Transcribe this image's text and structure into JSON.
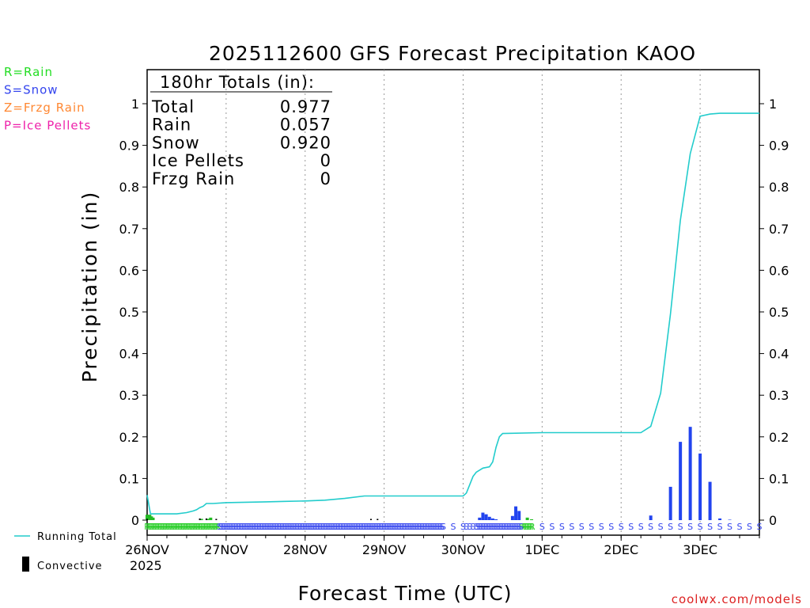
{
  "chart_data": {
    "type": "bar+line",
    "title": "2025112600 GFS Forecast Precipitation KAOO",
    "xlabel": "Forecast Time (UTC)",
    "ylabel": "Precipitation (in)",
    "ylim": [
      0,
      1.05
    ],
    "y_ticks": [
      "0",
      "0.1",
      "0.2",
      "0.3",
      "0.4",
      "0.5",
      "0.6",
      "0.7",
      "0.8",
      "0.9",
      "1"
    ],
    "y_tick_values": [
      0,
      0.1,
      0.2,
      0.3,
      0.4,
      0.5,
      0.6,
      0.7,
      0.8,
      0.9,
      1
    ],
    "xlim_hours": [
      0,
      186
    ],
    "x_ticks": [
      {
        "label": "26NOV",
        "hour": 0
      },
      {
        "label": "27NOV",
        "hour": 24
      },
      {
        "label": "28NOV",
        "hour": 48
      },
      {
        "label": "29NOV",
        "hour": 72
      },
      {
        "label": "30NOV",
        "hour": 96
      },
      {
        "label": "1DEC",
        "hour": 120
      },
      {
        "label": "2DEC",
        "hour": 144
      },
      {
        "label": "3DEC",
        "hour": 168
      }
    ],
    "year_label": "2025",
    "type_legend": [
      {
        "text": "R=Rain",
        "color": "#22dd22"
      },
      {
        "text": "S=Snow",
        "color": "#3344ee"
      },
      {
        "text": "Z=Frzg Rain",
        "color": "#ff8833"
      },
      {
        "text": "P=Ice Pellets",
        "color": "#ee22aa"
      }
    ],
    "series_legend": {
      "running_total": "Running Total",
      "convective": "Convective"
    },
    "totals": {
      "header": "180hr Totals (in):",
      "rows": [
        {
          "label": "Total",
          "value": "0.977"
        },
        {
          "label": "Rain",
          "value": "0.057"
        },
        {
          "label": "Snow",
          "value": "0.920"
        },
        {
          "label": "Ice Pellets",
          "value": "0"
        },
        {
          "label": "Frzg Rain",
          "value": "0"
        }
      ]
    },
    "running_total": {
      "hours": [
        0,
        1,
        3,
        6,
        9,
        12,
        14,
        15,
        16,
        17,
        18,
        20,
        24,
        30,
        36,
        42,
        48,
        54,
        60,
        66,
        68,
        70,
        72,
        78,
        84,
        90,
        96,
        97,
        98,
        99,
        100,
        102,
        104,
        105,
        106,
        107,
        108,
        120,
        132,
        144,
        150,
        153,
        156,
        159,
        162,
        165,
        168,
        171,
        174,
        176,
        177,
        180,
        186
      ],
      "values": [
        0.06,
        0.015,
        0.015,
        0.015,
        0.015,
        0.018,
        0.022,
        0.025,
        0.03,
        0.033,
        0.04,
        0.04,
        0.042,
        0.043,
        0.044,
        0.045,
        0.046,
        0.048,
        0.052,
        0.058,
        0.058,
        0.058,
        0.058,
        0.058,
        0.058,
        0.058,
        0.058,
        0.065,
        0.085,
        0.105,
        0.115,
        0.125,
        0.128,
        0.14,
        0.175,
        0.2,
        0.208,
        0.21,
        0.21,
        0.21,
        0.21,
        0.225,
        0.305,
        0.495,
        0.72,
        0.88,
        0.97,
        0.975,
        0.977,
        0.977,
        0.977,
        0.977,
        0.977
      ],
      "color": "#22cccc"
    },
    "bars": {
      "rain": {
        "color": "#22bb22",
        "hours": [
          0,
          0.8,
          1.3,
          1.8,
          16.5,
          18.5,
          19.3,
          115.5,
          116.8
        ],
        "values": [
          0.013,
          0.013,
          0.009,
          0.006,
          0.003,
          0.003,
          0.006,
          0.006,
          0.002
        ]
      },
      "snow": {
        "color": "#2244ee",
        "hours": [
          101,
          102,
          103,
          104,
          105,
          106,
          111,
          112,
          113,
          153,
          159,
          162,
          165,
          168,
          171,
          174,
          177
        ],
        "values": [
          0.006,
          0.018,
          0.014,
          0.008,
          0.004,
          0.002,
          0.01,
          0.033,
          0.022,
          0.011,
          0.08,
          0.188,
          0.224,
          0.16,
          0.092,
          0.004,
          0.001
        ]
      },
      "convective": {
        "color": "#000000",
        "hours": [
          0,
          16,
          18,
          21,
          68,
          70
        ],
        "values": [
          0.003,
          0.004,
          0.004,
          0.003,
          0.003,
          0.003
        ]
      }
    },
    "type_codes": {
      "rain_code": "R",
      "rain_hours": [
        0,
        0.5,
        1,
        1.5,
        2,
        2.5,
        3,
        3.5,
        4,
        4.5,
        5,
        5.5,
        6,
        6.5,
        7,
        7.5,
        8,
        8.5,
        9,
        9.5,
        10,
        10.5,
        11,
        11.5,
        12,
        12.5,
        13,
        13.5,
        14,
        14.5,
        15,
        15.5,
        16,
        16.5,
        17,
        17.5,
        18,
        18.5,
        19,
        19.5,
        20,
        20.5,
        21,
        21.5,
        114,
        114.5,
        115,
        115.5,
        116,
        116.5,
        117
      ],
      "snow_code": "S",
      "snow_hours": [
        22,
        22.5,
        23,
        23.5,
        24,
        24.5,
        25,
        25.5,
        26,
        26.5,
        27,
        27.5,
        28,
        28.5,
        29,
        29.5,
        30,
        30.5,
        31,
        31.5,
        32,
        32.5,
        33,
        33.5,
        34,
        34.5,
        35,
        35.5,
        36,
        36.5,
        37,
        37.5,
        38,
        38.5,
        39,
        39.5,
        40,
        40.5,
        41,
        41.5,
        42,
        42.5,
        43,
        43.5,
        44,
        44.5,
        45,
        45.5,
        46,
        46.5,
        47,
        47.5,
        48,
        48.5,
        49,
        49.5,
        50,
        50.5,
        51,
        51.5,
        52,
        52.5,
        53,
        53.5,
        54,
        54.5,
        55,
        55.5,
        56,
        56.5,
        57,
        57.5,
        58,
        58.5,
        59,
        59.5,
        60,
        60.5,
        61,
        61.5,
        62,
        62.5,
        63,
        63.5,
        64,
        64.5,
        65,
        65.5,
        66,
        66.5,
        67,
        67.5,
        68,
        68.5,
        69,
        69.5,
        70,
        70.5,
        71,
        71.5,
        72,
        72.5,
        73,
        73.5,
        74,
        74.5,
        75,
        75.5,
        76,
        76.5,
        77,
        77.5,
        78,
        78.5,
        79,
        79.5,
        80,
        80.5,
        81,
        81.5,
        82,
        82.5,
        83,
        83.5,
        84,
        84.5,
        85,
        85.5,
        86,
        86.5,
        87,
        87.5,
        88,
        88.5,
        89,
        89.5,
        90,
        93,
        96,
        97,
        98,
        99,
        100,
        100.5,
        101,
        101.5,
        102,
        102.5,
        103,
        103.5,
        104,
        104.5,
        105,
        105.5,
        106,
        106.5,
        107,
        107.5,
        108,
        108.5,
        109,
        109.5,
        110,
        110.5,
        111,
        111.5,
        112,
        112.5,
        113,
        113.5,
        120,
        123,
        126,
        129,
        132,
        135,
        138,
        141,
        144,
        147,
        150,
        153,
        156,
        159,
        162,
        165,
        168,
        171,
        174,
        177,
        180,
        183,
        186
      ]
    },
    "credit": "coolwx.com/models"
  }
}
